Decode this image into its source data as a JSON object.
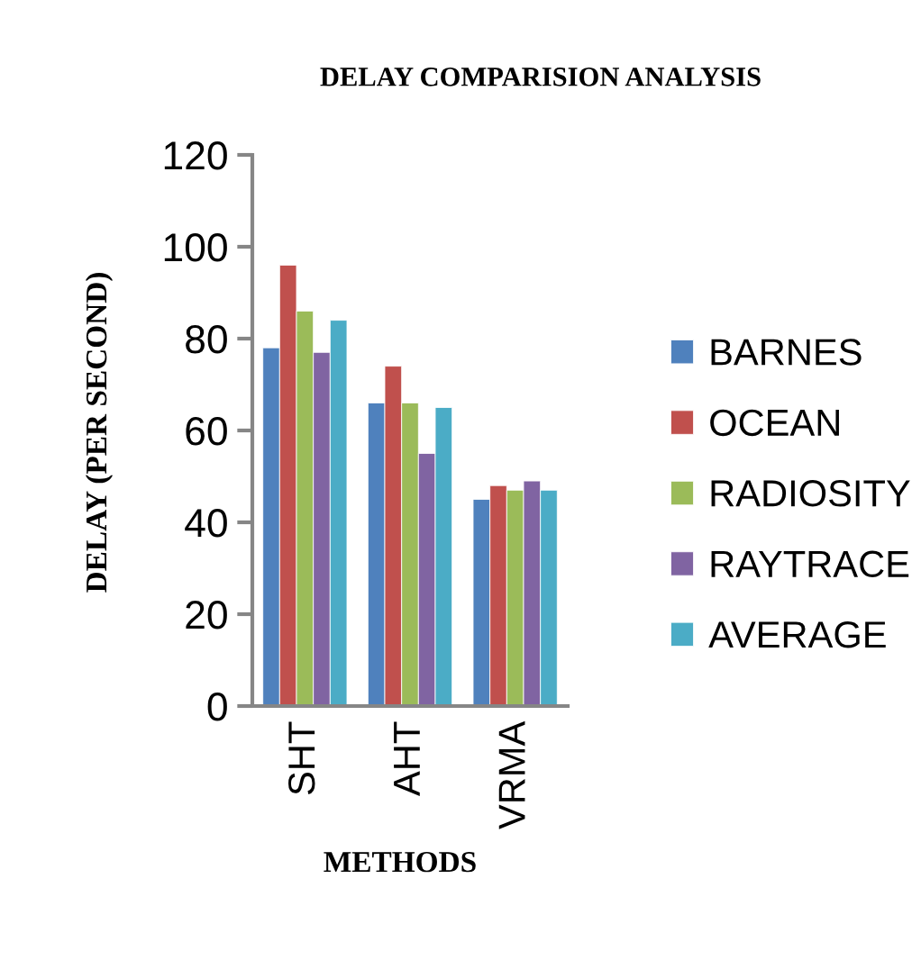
{
  "chart_data": {
    "type": "bar",
    "title": "DELAY COMPARISION ANALYSIS",
    "xlabel": "METHODS",
    "ylabel": "DELAY (PER SECOND)",
    "categories": [
      "SHT",
      "AHT",
      "VRMA"
    ],
    "series": [
      {
        "name": "BARNES",
        "color": "#4f81bd",
        "values": [
          78,
          66,
          45
        ]
      },
      {
        "name": "OCEAN",
        "color": "#c0504d",
        "values": [
          96,
          74,
          48
        ]
      },
      {
        "name": "RADIOSITY",
        "color": "#9bbb59",
        "values": [
          86,
          66,
          47
        ]
      },
      {
        "name": "RAYTRACE",
        "color": "#8064a2",
        "values": [
          77,
          55,
          49
        ]
      },
      {
        "name": "AVERAGE",
        "color": "#4bacc6",
        "values": [
          84,
          65,
          47
        ]
      }
    ],
    "ylim": [
      0,
      120
    ],
    "yticks": [
      0,
      20,
      40,
      60,
      80,
      100,
      120
    ],
    "grid": false,
    "legend": "right"
  }
}
